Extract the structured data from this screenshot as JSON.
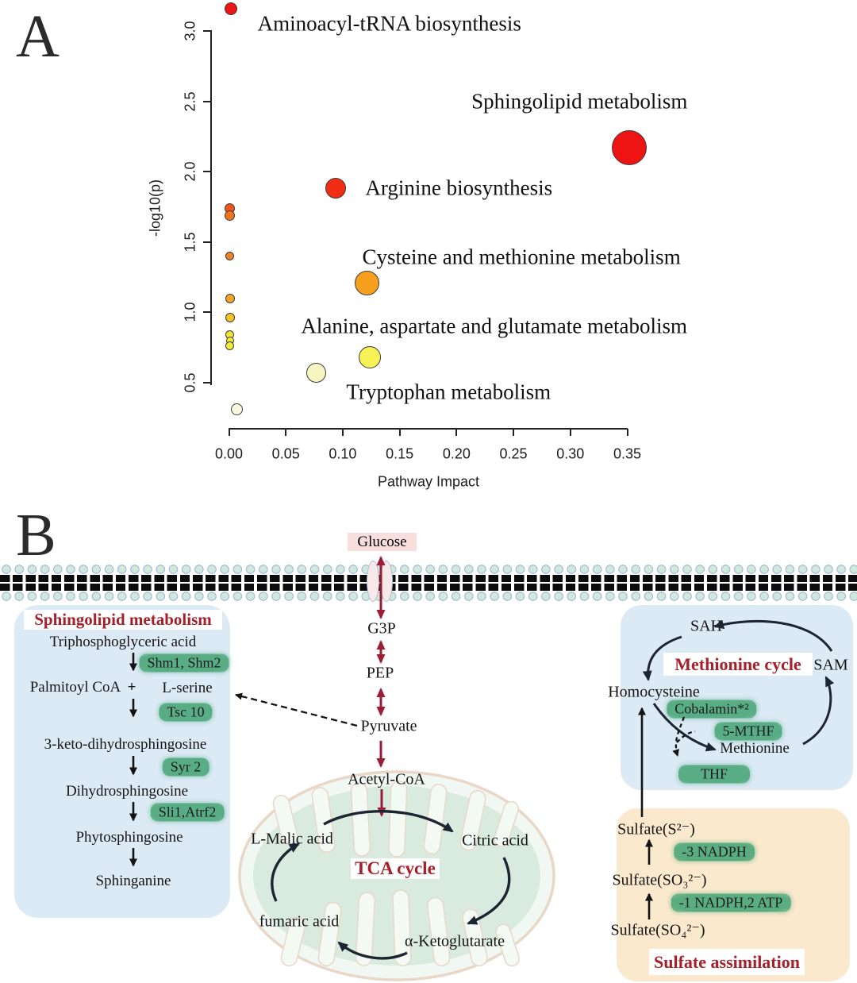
{
  "panels": {
    "a_label": "A",
    "b_label": "B"
  },
  "chart_data": {
    "type": "scatter",
    "title": "",
    "xlabel": "Pathway Impact",
    "ylabel": "-log10(p)",
    "x_range": [
      0,
      0.35
    ],
    "y_range": [
      0.5,
      3.0
    ],
    "grid": false,
    "x_ticks": [
      "0.00",
      "0.05",
      "0.10",
      "0.15",
      "0.20",
      "0.25",
      "0.30",
      "0.35"
    ],
    "y_ticks": [
      "0.5",
      "1.0",
      "1.5",
      "2.0",
      "2.5",
      "3.0"
    ],
    "points": [
      {
        "x": 0.002,
        "y": 3.16,
        "r": 8,
        "color": "#ee1414",
        "label": "Aminoacyl-tRNA biosynthesis"
      },
      {
        "x": 0.352,
        "y": 2.17,
        "r": 22,
        "color": "#ee1414",
        "label": "Sphingolipid metabolism"
      },
      {
        "x": 0.094,
        "y": 1.88,
        "r": 13,
        "color": "#f02c12",
        "label": "Arginine biosynthesis"
      },
      {
        "x": 0.001,
        "y": 1.74,
        "r": 6.5,
        "color": "#f0561b",
        "label": ""
      },
      {
        "x": 0.001,
        "y": 1.69,
        "r": 6.5,
        "color": "#f2731c",
        "label": ""
      },
      {
        "x": 0.001,
        "y": 1.4,
        "r": 5.5,
        "color": "#ef8321",
        "label": ""
      },
      {
        "x": 0.121,
        "y": 1.21,
        "r": 15.5,
        "color": "#f7a01e",
        "label": "Cysteine and methionine metabolism"
      },
      {
        "x": 0.001,
        "y": 1.1,
        "r": 6,
        "color": "#f5a623",
        "label": ""
      },
      {
        "x": 0.001,
        "y": 0.96,
        "r": 6,
        "color": "#f5c32a",
        "label": ""
      },
      {
        "x": 0.001,
        "y": 0.84,
        "r": 5.5,
        "color": "#f2e335",
        "label": ""
      },
      {
        "x": 0.001,
        "y": 0.8,
        "r": 5,
        "color": "#f4ea3a",
        "label": ""
      },
      {
        "x": 0.001,
        "y": 0.76,
        "r": 5.5,
        "color": "#f4ea3a",
        "label": ""
      },
      {
        "x": 0.124,
        "y": 0.68,
        "r": 14,
        "color": "#f6f155",
        "label": "Alanine, aspartate and glutamate metabolism"
      },
      {
        "x": 0.077,
        "y": 0.57,
        "r": 12.5,
        "color": "#f8f6c0",
        "label": "Tryptophan metabolism"
      },
      {
        "x": 0.007,
        "y": 0.31,
        "r": 7.5,
        "color": "#f8f6dc",
        "label": ""
      }
    ],
    "labels": [
      {
        "text": "Aminoacyl-tRNA biosynthesis",
        "x": 0.141,
        "y": 3.05
      },
      {
        "text": "Sphingolipid metabolism",
        "x": 0.308,
        "y": 2.5
      },
      {
        "text": "Arginine biosynthesis",
        "x": 0.202,
        "y": 1.88
      },
      {
        "text": "Cysteine and methionine metabolism",
        "x": 0.257,
        "y": 1.39
      },
      {
        "text": "Alanine, aspartate and glutamate metabolism",
        "x": 0.233,
        "y": 0.9
      },
      {
        "text": "Tryptophan metabolism",
        "x": 0.193,
        "y": 0.43
      }
    ],
    "legend_position": "none"
  },
  "pathway": {
    "glucose": "Glucose",
    "g3p": "G3P",
    "pep": "PEP",
    "pyruvate": "Pyruvate",
    "acetyl_coa": "Acetyl-CoA",
    "tca": {
      "title": "TCA cycle",
      "l_malic": "L-Malic acid",
      "citric": "Citric acid",
      "fumaric": "fumaric acid",
      "ketoglutarate": "α-Ketoglutarate"
    },
    "sphingolipid": {
      "title": "Sphingolipid metabolism",
      "substrate1": "Triphosphoglyceric acid",
      "enzyme1": "Shm1, Shm2",
      "substrate2a": "Palmitoyl CoA",
      "plus": "+",
      "substrate2b": "L-serine",
      "enzyme2": "Tsc 10",
      "substrate3": "3-keto-dihydrosphingosine",
      "enzyme3": "Syr 2",
      "substrate4": "Dihydrosphingosine",
      "enzyme4": "Sli1,Atrf2",
      "substrate5": "Phytosphingosine",
      "substrate6": "Sphinganine"
    },
    "methionine": {
      "title": "Methionine cycle",
      "sah": "SAH",
      "sam": "SAM",
      "homocysteine": "Homocysteine",
      "cofactor": "Cobalamin*²",
      "mthf": "5-MTHF",
      "methionine": "Methionine",
      "thf": "THF"
    },
    "sulfate": {
      "title": "Sulfate assimilation",
      "s2": "Sulfate(S²⁻)",
      "step1": "-3 NADPH",
      "so3": "Sulfate(SO₃²⁻)",
      "step2": "-1 NADPH,2 ATP",
      "so4": "Sulfate(SO₄²⁻)"
    }
  },
  "colors": {
    "accent_dark_red": "#9b1d33",
    "title_red": "#a5202a",
    "enzyme_green": "#4da87a",
    "box_blue": "#dceaf6",
    "box_orange": "#fbe9cd",
    "glucose_pink": "#f9dede",
    "arrow_black": "#1c2531"
  }
}
